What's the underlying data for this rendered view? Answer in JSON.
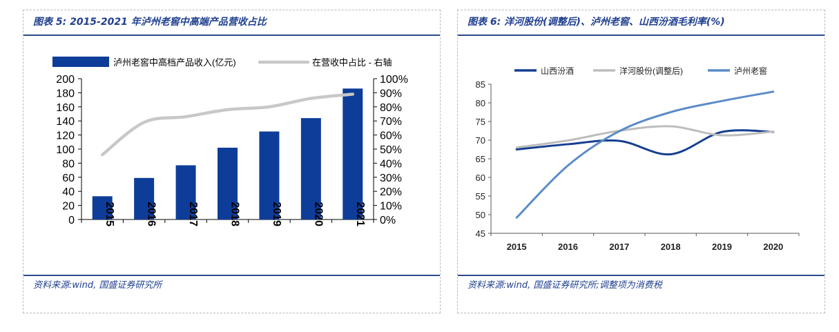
{
  "left": {
    "title": "图表 5:  2015-2021 年泸州老窖中高端产品营收占比",
    "source": "资料来源:wind, 国盛证券研究所",
    "colors": {
      "bar": "#0e3d99",
      "line": "#c8c8c8",
      "rule": "#2a4a8c",
      "text": "#1f3f8f"
    }
  },
  "right": {
    "title": "图表 6:  洋河股份(调整后)、泸州老窖、山西汾酒毛利率(%)",
    "source": "资料来源:wind, 国盛证券研究所;调整项为消费税",
    "colors": {
      "s0": "#143f8f",
      "s1": "#bdbdbd",
      "s2": "#5b8bc8"
    }
  },
  "chart_data": [
    {
      "type": "bar",
      "categories": [
        "2015",
        "2016",
        "2017",
        "2018",
        "2019",
        "2020",
        "2021"
      ],
      "series": [
        {
          "name": "泸州老窖中高档产品收入(亿元)",
          "type": "bar",
          "axis": "left",
          "values": [
            33,
            59,
            77,
            102,
            125,
            144,
            186
          ]
        },
        {
          "name": "在营收中占比 - 右轴",
          "type": "line",
          "axis": "right",
          "values": [
            46,
            69,
            73,
            78,
            80,
            86,
            89
          ]
        }
      ],
      "ylim": [
        0,
        200
      ],
      "yticks": [
        "0",
        "20",
        "40",
        "60",
        "80",
        "100",
        "120",
        "140",
        "160",
        "180",
        "200"
      ],
      "y2lim": [
        0,
        100
      ],
      "y2ticks": [
        "0%",
        "10%",
        "20%",
        "30%",
        "40%",
        "50%",
        "60%",
        "70%",
        "80%",
        "90%",
        "100%"
      ],
      "legend": "top"
    },
    {
      "type": "line",
      "x": [
        "2015",
        "2016",
        "2017",
        "2018",
        "2019",
        "2020"
      ],
      "series": [
        {
          "name": "山西汾酒",
          "values": [
            67.5,
            68.9,
            69.8,
            66.2,
            72.2,
            72.2
          ]
        },
        {
          "name": "洋河股份(调整后)",
          "values": [
            68.0,
            69.9,
            72.5,
            73.7,
            71.3,
            72.3
          ]
        },
        {
          "name": "泸州老窖",
          "values": [
            49.2,
            63.2,
            72.4,
            77.5,
            80.5,
            83.0
          ]
        }
      ],
      "ylim": [
        45,
        85
      ],
      "yticks": [
        "45",
        "50",
        "55",
        "60",
        "65",
        "70",
        "75",
        "80",
        "85"
      ],
      "legend": "top"
    }
  ]
}
